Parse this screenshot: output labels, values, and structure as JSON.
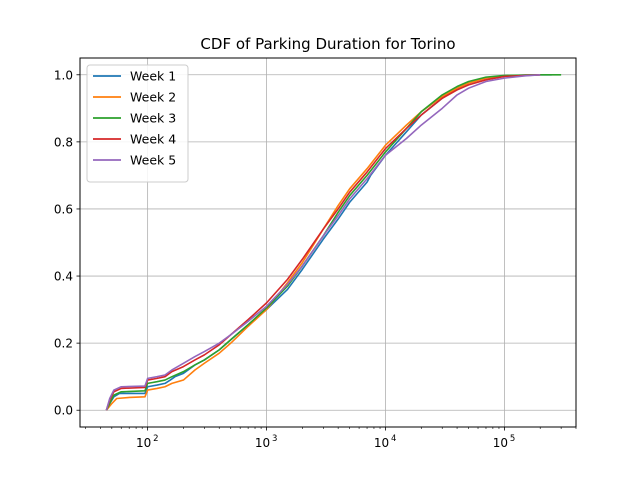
{
  "chart_data": {
    "type": "line",
    "title": "CDF of Parking Duration for Torino",
    "xlabel": "",
    "ylabel": "",
    "xscale": "log",
    "xlim": [
      27,
      400000
    ],
    "ylim": [
      -0.05,
      1.05
    ],
    "x_ticks": [
      {
        "base": "10",
        "exp": "2",
        "value": 100
      },
      {
        "base": "10",
        "exp": "3",
        "value": 1000
      },
      {
        "base": "10",
        "exp": "4",
        "value": 10000
      },
      {
        "base": "10",
        "exp": "5",
        "value": 100000
      }
    ],
    "y_ticks": [
      {
        "label": "0.0",
        "value": 0.0
      },
      {
        "label": "0.2",
        "value": 0.2
      },
      {
        "label": "0.4",
        "value": 0.4
      },
      {
        "label": "0.6",
        "value": 0.6
      },
      {
        "label": "0.8",
        "value": 0.8
      },
      {
        "label": "1.0",
        "value": 1.0
      }
    ],
    "grid": true,
    "legend_position": "upper-left",
    "series": [
      {
        "name": "Week 1",
        "color": "#1f77b4",
        "points": [
          [
            45,
            0
          ],
          [
            48,
            0.02
          ],
          [
            52,
            0.04
          ],
          [
            58,
            0.05
          ],
          [
            70,
            0.05
          ],
          [
            95,
            0.05
          ],
          [
            100,
            0.07
          ],
          [
            120,
            0.075
          ],
          [
            140,
            0.08
          ],
          [
            155,
            0.09
          ],
          [
            170,
            0.1
          ],
          [
            200,
            0.11
          ],
          [
            250,
            0.135
          ],
          [
            300,
            0.15
          ],
          [
            400,
            0.18
          ],
          [
            500,
            0.21
          ],
          [
            700,
            0.255
          ],
          [
            1000,
            0.3
          ],
          [
            1500,
            0.36
          ],
          [
            2000,
            0.42
          ],
          [
            3000,
            0.51
          ],
          [
            4000,
            0.57
          ],
          [
            5000,
            0.62
          ],
          [
            7000,
            0.68
          ],
          [
            7500,
            0.7
          ],
          [
            10000,
            0.76
          ],
          [
            15000,
            0.83
          ],
          [
            20000,
            0.88
          ],
          [
            30000,
            0.93
          ],
          [
            40000,
            0.96
          ],
          [
            50000,
            0.975
          ],
          [
            70000,
            0.99
          ],
          [
            100000,
            0.997
          ],
          [
            150000,
            0.999
          ],
          [
            200000,
            1.0
          ],
          [
            250000,
            1.0
          ]
        ]
      },
      {
        "name": "Week 2",
        "color": "#ff7f0e",
        "points": [
          [
            45,
            0
          ],
          [
            50,
            0.02
          ],
          [
            55,
            0.035
          ],
          [
            70,
            0.038
          ],
          [
            95,
            0.04
          ],
          [
            100,
            0.06
          ],
          [
            120,
            0.065
          ],
          [
            140,
            0.07
          ],
          [
            160,
            0.08
          ],
          [
            200,
            0.09
          ],
          [
            250,
            0.12
          ],
          [
            300,
            0.14
          ],
          [
            400,
            0.17
          ],
          [
            500,
            0.2
          ],
          [
            700,
            0.25
          ],
          [
            1000,
            0.3
          ],
          [
            1500,
            0.38
          ],
          [
            2000,
            0.44
          ],
          [
            3000,
            0.54
          ],
          [
            4000,
            0.61
          ],
          [
            5000,
            0.66
          ],
          [
            7000,
            0.72
          ],
          [
            10000,
            0.79
          ],
          [
            15000,
            0.85
          ],
          [
            20000,
            0.89
          ],
          [
            30000,
            0.935
          ],
          [
            40000,
            0.96
          ],
          [
            50000,
            0.975
          ],
          [
            70000,
            0.99
          ],
          [
            100000,
            0.997
          ],
          [
            200000,
            1.0
          ]
        ]
      },
      {
        "name": "Week 3",
        "color": "#2ca02c",
        "points": [
          [
            45,
            0
          ],
          [
            48,
            0.02
          ],
          [
            52,
            0.045
          ],
          [
            60,
            0.055
          ],
          [
            95,
            0.058
          ],
          [
            100,
            0.08
          ],
          [
            120,
            0.085
          ],
          [
            140,
            0.09
          ],
          [
            160,
            0.1
          ],
          [
            200,
            0.115
          ],
          [
            250,
            0.135
          ],
          [
            300,
            0.15
          ],
          [
            400,
            0.18
          ],
          [
            500,
            0.21
          ],
          [
            700,
            0.255
          ],
          [
            1000,
            0.305
          ],
          [
            1500,
            0.37
          ],
          [
            2000,
            0.43
          ],
          [
            3000,
            0.52
          ],
          [
            4000,
            0.59
          ],
          [
            5000,
            0.64
          ],
          [
            7000,
            0.7
          ],
          [
            10000,
            0.77
          ],
          [
            15000,
            0.84
          ],
          [
            20000,
            0.89
          ],
          [
            30000,
            0.94
          ],
          [
            40000,
            0.965
          ],
          [
            50000,
            0.98
          ],
          [
            70000,
            0.993
          ],
          [
            100000,
            0.998
          ],
          [
            200000,
            1.0
          ],
          [
            300000,
            1.0
          ]
        ]
      },
      {
        "name": "Week 4",
        "color": "#d62728",
        "points": [
          [
            45,
            0
          ],
          [
            48,
            0.03
          ],
          [
            52,
            0.055
          ],
          [
            60,
            0.065
          ],
          [
            95,
            0.068
          ],
          [
            100,
            0.09
          ],
          [
            120,
            0.095
          ],
          [
            140,
            0.1
          ],
          [
            160,
            0.115
          ],
          [
            200,
            0.13
          ],
          [
            250,
            0.15
          ],
          [
            300,
            0.165
          ],
          [
            400,
            0.195
          ],
          [
            500,
            0.225
          ],
          [
            700,
            0.27
          ],
          [
            1000,
            0.32
          ],
          [
            1500,
            0.39
          ],
          [
            2000,
            0.45
          ],
          [
            3000,
            0.54
          ],
          [
            4000,
            0.6
          ],
          [
            5000,
            0.65
          ],
          [
            7000,
            0.71
          ],
          [
            10000,
            0.78
          ],
          [
            15000,
            0.84
          ],
          [
            20000,
            0.88
          ],
          [
            30000,
            0.93
          ],
          [
            40000,
            0.955
          ],
          [
            50000,
            0.97
          ],
          [
            70000,
            0.985
          ],
          [
            100000,
            0.995
          ],
          [
            200000,
            1.0
          ]
        ]
      },
      {
        "name": "Week 5",
        "color": "#9467bd",
        "points": [
          [
            45,
            0
          ],
          [
            48,
            0.035
          ],
          [
            52,
            0.06
          ],
          [
            60,
            0.07
          ],
          [
            95,
            0.072
          ],
          [
            100,
            0.095
          ],
          [
            120,
            0.1
          ],
          [
            140,
            0.105
          ],
          [
            160,
            0.12
          ],
          [
            200,
            0.14
          ],
          [
            250,
            0.16
          ],
          [
            300,
            0.175
          ],
          [
            400,
            0.2
          ],
          [
            500,
            0.225
          ],
          [
            700,
            0.265
          ],
          [
            1000,
            0.31
          ],
          [
            1500,
            0.375
          ],
          [
            2000,
            0.43
          ],
          [
            3000,
            0.52
          ],
          [
            4000,
            0.58
          ],
          [
            5000,
            0.63
          ],
          [
            7000,
            0.69
          ],
          [
            10000,
            0.76
          ],
          [
            15000,
            0.81
          ],
          [
            20000,
            0.85
          ],
          [
            30000,
            0.9
          ],
          [
            40000,
            0.94
          ],
          [
            50000,
            0.96
          ],
          [
            70000,
            0.98
          ],
          [
            100000,
            0.99
          ],
          [
            150000,
            0.997
          ],
          [
            200000,
            1.0
          ]
        ]
      }
    ]
  }
}
